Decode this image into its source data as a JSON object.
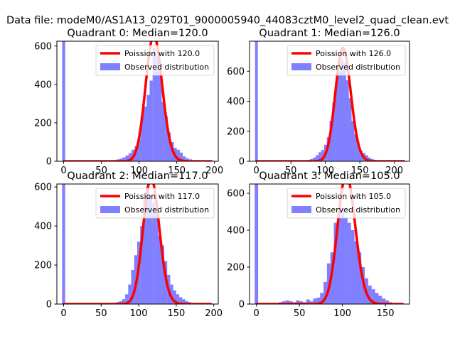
{
  "figure": {
    "suptitle": "Data file: modeM0/AS1A13_029T01_9000005940_44083cztM0_level2_quad_clean.evt"
  },
  "colors": {
    "histogram": "#0000ff",
    "poisson": "#ff0000",
    "axes": "#000000",
    "background": "#ffffff"
  },
  "chart_data": [
    {
      "type": "bar",
      "title": "Quadrant 0: Median=120.0",
      "legend": [
        "Poission with 120.0",
        "Observed distribution"
      ],
      "legend_position": "upper-right",
      "grid": false,
      "xlim": [
        -9,
        205
      ],
      "ylim": [
        0,
        625
      ],
      "xticks": [
        0,
        50,
        100,
        150,
        200
      ],
      "yticks": [
        0,
        200,
        400,
        600
      ],
      "spike": {
        "x": 0,
        "height": 625
      },
      "hist": {
        "bin_width": 4,
        "x": [
          44,
          48,
          52,
          56,
          60,
          64,
          68,
          72,
          76,
          80,
          84,
          88,
          92,
          96,
          100,
          104,
          108,
          112,
          116,
          120,
          124,
          128,
          132,
          136,
          140,
          144,
          148,
          152,
          156,
          160,
          164,
          168,
          172,
          176,
          180
        ],
        "values": [
          2,
          2,
          3,
          3,
          4,
          5,
          6,
          10,
          14,
          20,
          30,
          42,
          60,
          80,
          120,
          235,
          285,
          345,
          420,
          590,
          545,
          490,
          310,
          235,
          150,
          100,
          70,
          60,
          45,
          25,
          15,
          10,
          6,
          3,
          2
        ]
      },
      "poisson": {
        "mean": 120.0,
        "scale": 655,
        "x_range": [
          0,
          196
        ]
      }
    },
    {
      "type": "bar",
      "title": "Quadrant 1: Median=126.0",
      "legend": [
        "Poission with 126.0",
        "Observed distribution"
      ],
      "legend_position": "upper-right",
      "grid": false,
      "xlim": [
        -10,
        222
      ],
      "ylim": [
        0,
        800
      ],
      "xticks": [
        0,
        50,
        100,
        150,
        200
      ],
      "yticks": [
        0,
        200,
        400,
        600
      ],
      "spike": {
        "x": 0,
        "height": 800
      },
      "hist": {
        "bin_width": 4,
        "x": [
          40,
          44,
          48,
          52,
          56,
          60,
          64,
          68,
          72,
          76,
          80,
          84,
          88,
          92,
          96,
          100,
          104,
          108,
          112,
          116,
          120,
          124,
          128,
          132,
          136,
          140,
          144,
          148,
          152,
          156,
          160,
          164,
          168,
          172,
          176,
          180,
          184
        ],
        "values": [
          2,
          2,
          2,
          3,
          3,
          4,
          5,
          6,
          8,
          10,
          15,
          25,
          40,
          60,
          75,
          110,
          160,
          270,
          390,
          520,
          600,
          680,
          660,
          540,
          420,
          270,
          180,
          110,
          70,
          55,
          40,
          25,
          15,
          10,
          5,
          3,
          2
        ]
      },
      "poisson": {
        "mean": 126.0,
        "scale": 755,
        "x_range": [
          0,
          214
        ]
      }
    },
    {
      "type": "bar",
      "title": "Quadrant 2: Median=117.0",
      "legend": [
        "Poission with 117.0",
        "Observed distribution"
      ],
      "legend_position": "upper-right",
      "grid": false,
      "xlim": [
        -9,
        206
      ],
      "ylim": [
        0,
        615
      ],
      "xticks": [
        0,
        50,
        100,
        150,
        200
      ],
      "yticks": [
        0,
        200,
        400,
        600
      ],
      "spike": {
        "x": 0,
        "height": 615
      },
      "hist": {
        "bin_width": 4,
        "x": [
          40,
          44,
          48,
          52,
          56,
          60,
          64,
          68,
          72,
          76,
          80,
          84,
          88,
          92,
          96,
          100,
          104,
          108,
          112,
          116,
          120,
          124,
          128,
          132,
          136,
          140,
          144,
          148,
          152,
          156,
          160,
          164,
          168,
          172,
          176
        ],
        "values": [
          2,
          2,
          2,
          3,
          3,
          4,
          5,
          6,
          10,
          15,
          25,
          50,
          100,
          175,
          250,
          320,
          400,
          540,
          600,
          560,
          520,
          470,
          350,
          300,
          220,
          150,
          100,
          70,
          50,
          35,
          25,
          15,
          10,
          5,
          2
        ]
      },
      "poisson": {
        "mean": 117.0,
        "scale": 645,
        "x_range": [
          0,
          196
        ]
      }
    },
    {
      "type": "bar",
      "title": "Quadrant 3: Median=105.0",
      "legend": [
        "Poission with 105.0",
        "Observed distribution"
      ],
      "legend_position": "upper-right",
      "grid": false,
      "xlim": [
        -8,
        178
      ],
      "ylim": [
        0,
        650
      ],
      "xticks": [
        0,
        50,
        100,
        150
      ],
      "yticks": [
        0,
        200,
        400,
        600
      ],
      "spike": {
        "x": 0,
        "height": 650
      },
      "hist": {
        "bin_width": 4,
        "x": [
          24,
          28,
          32,
          36,
          40,
          44,
          48,
          52,
          56,
          60,
          64,
          68,
          72,
          76,
          80,
          84,
          88,
          92,
          96,
          100,
          104,
          108,
          112,
          116,
          120,
          124,
          128,
          132,
          136,
          140,
          144,
          148,
          152,
          156,
          160
        ],
        "values": [
          5,
          10,
          15,
          20,
          15,
          10,
          20,
          15,
          10,
          25,
          15,
          30,
          35,
          60,
          120,
          220,
          280,
          440,
          470,
          520,
          470,
          440,
          400,
          340,
          280,
          200,
          140,
          100,
          80,
          60,
          45,
          30,
          20,
          10,
          5
        ]
      },
      "poisson": {
        "mean": 105.0,
        "scale": 700,
        "x_range": [
          0,
          170
        ]
      }
    }
  ]
}
